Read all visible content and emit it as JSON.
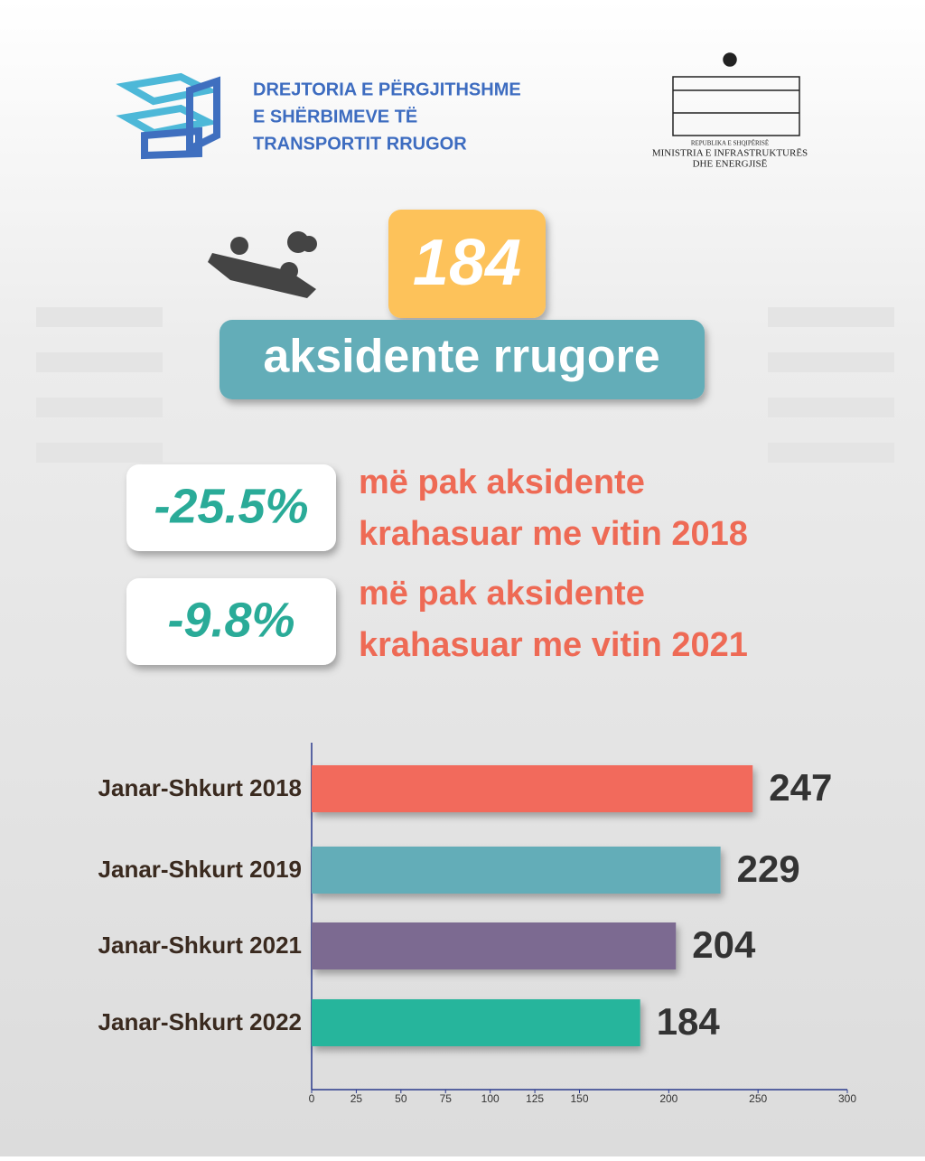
{
  "logo_text": [
    "DREJTORIA E PËRGJITHSHME",
    "E SHËRBIMEVE TË",
    "TRANSPORTIT RRUGOR"
  ],
  "ministry": [
    "REPUBLIKA E SHQIPËRISË",
    "MINISTRIA E INFRASTRUKTURËS",
    "DHE ENERGJISË"
  ],
  "headline": {
    "number": 184,
    "label": "aksidente rrugore"
  },
  "comparisons": [
    {
      "change": "-25.5%",
      "text": [
        "më pak aksidente",
        "krahasuar me vitin 2018"
      ]
    },
    {
      "change": "-9.8%",
      "text": [
        "më pak aksidente",
        "krahasuar me vitin 2021"
      ]
    }
  ],
  "chart_data": {
    "type": "hbar",
    "categories": [
      "Janar-Shkurt 2018",
      "Janar-Shkurt 2019",
      "Janar-Shkurt 2021",
      "Janar-Shkurt 2022"
    ],
    "values": [
      247,
      229,
      204,
      184
    ],
    "colors": [
      "#f26b5b",
      "#64adb8",
      "#7b6b91",
      "#26b59c"
    ],
    "xlim": [
      0,
      300
    ],
    "xticks": [
      0,
      25,
      50,
      75,
      100,
      125,
      150,
      200,
      250,
      300
    ]
  }
}
